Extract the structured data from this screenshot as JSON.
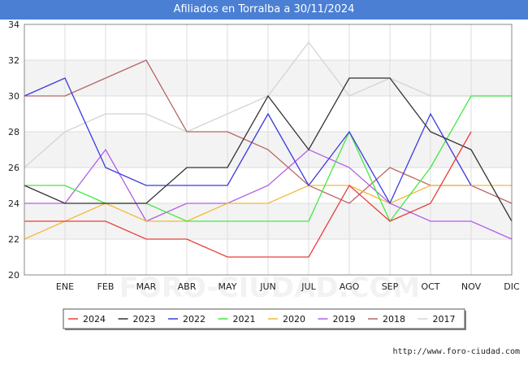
{
  "chart_data": {
    "type": "line",
    "title": "Afiliados en Torralba a 30/11/2024",
    "xlabel": "",
    "ylabel": "",
    "categories": [
      "",
      "ENE",
      "FEB",
      "MAR",
      "ABR",
      "MAY",
      "JUN",
      "JUL",
      "AGO",
      "SEP",
      "OCT",
      "NOV",
      "DIC"
    ],
    "ylim": [
      20,
      34
    ],
    "yticks": [
      20,
      22,
      24,
      26,
      28,
      30,
      32,
      34
    ],
    "grid": true,
    "legend_position": "bottom",
    "series": [
      {
        "name": "2024",
        "color": "#e8403a",
        "values": [
          23,
          23,
          23,
          22,
          22,
          21,
          21,
          21,
          25,
          23,
          24,
          28,
          null
        ]
      },
      {
        "name": "2023",
        "color": "#333333",
        "values": [
          25,
          24,
          24,
          24,
          26,
          26,
          30,
          27,
          31,
          31,
          28,
          27,
          23
        ]
      },
      {
        "name": "2022",
        "color": "#3a3ae0",
        "values": [
          30,
          31,
          26,
          25,
          25,
          25,
          29,
          25,
          28,
          24,
          29,
          25,
          null
        ]
      },
      {
        "name": "2021",
        "color": "#44e844",
        "values": [
          25,
          25,
          24,
          24,
          23,
          23,
          23,
          23,
          28,
          23,
          26,
          30,
          30
        ]
      },
      {
        "name": "2020",
        "color": "#f5b93a",
        "values": [
          22,
          23,
          24,
          23,
          23,
          24,
          24,
          25,
          25,
          24,
          25,
          25,
          25
        ]
      },
      {
        "name": "2019",
        "color": "#b25ee8",
        "values": [
          24,
          24,
          27,
          23,
          24,
          24,
          25,
          27,
          26,
          24,
          23,
          23,
          22
        ]
      },
      {
        "name": "2018",
        "color": "#b86666",
        "values": [
          30,
          30,
          31,
          32,
          28,
          28,
          27,
          25,
          24,
          26,
          25,
          25,
          24
        ]
      },
      {
        "name": "2017",
        "color": "#d4d4d4",
        "values": [
          26,
          28,
          29,
          29,
          28,
          29,
          30,
          33,
          30,
          31,
          30,
          30,
          30
        ]
      }
    ]
  },
  "watermark": "FORO-CIUDAD.COM",
  "source": "http://www.foro-ciudad.com"
}
